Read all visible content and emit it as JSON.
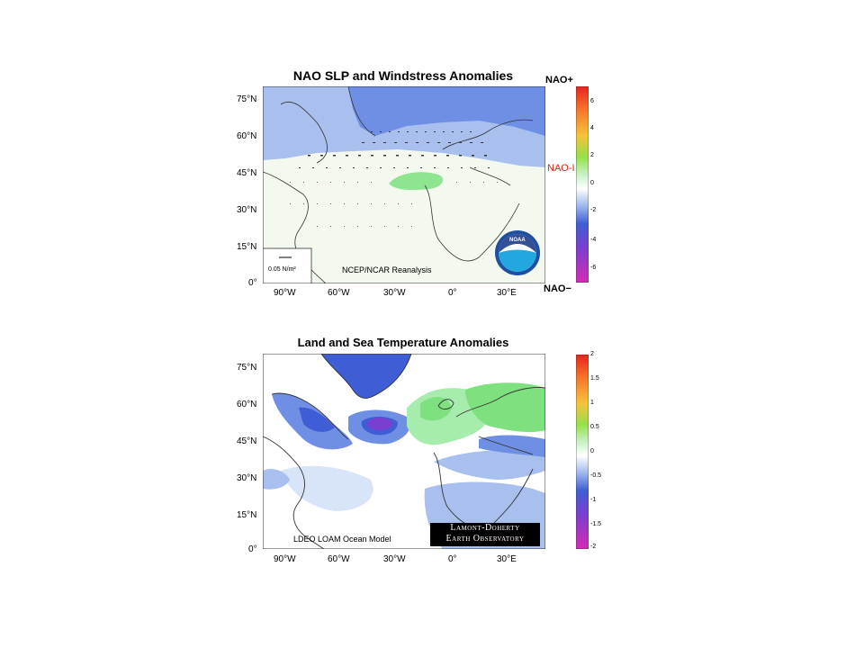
{
  "top_panel": {
    "title": "NAO SLP and Windstress Anomalies",
    "lat_labels": [
      "75°N",
      "60°N",
      "45°N",
      "30°N",
      "15°N",
      "0°"
    ],
    "lon_labels": [
      "90°W",
      "60°W",
      "30°W",
      "0°",
      "30°E"
    ],
    "nao_plus": "NAO+",
    "nao_index": "NAO-I",
    "nao_minus": "NAO−",
    "scale_ref": "0.05 N/m²",
    "credit": "NCEP/NCAR Reanalysis",
    "logo_text": "NOAA",
    "colorbar_ticks": [
      "6",
      "4",
      "2",
      "0",
      "-2",
      "-4",
      "-6"
    ]
  },
  "bottom_panel": {
    "title": "Land and Sea Temperature Anomalies",
    "lat_labels": [
      "75°N",
      "60°N",
      "45°N",
      "30°N",
      "15°N",
      "0°"
    ],
    "lon_labels": [
      "90°W",
      "60°W",
      "30°W",
      "0°",
      "30°E"
    ],
    "credit": "LDEO LOAM Ocean Model",
    "logo_line1": "Lamont-Doherty",
    "logo_line2": "Earth Observatory",
    "colorbar_ticks": [
      "2",
      "1.5",
      "1",
      "0.5",
      "0",
      "-0.5",
      "-1",
      "-1.5",
      "-2"
    ]
  },
  "colors": {
    "deep_blue": "#3f5ed6",
    "mid_blue": "#6f8fe4",
    "light_blue": "#a9c0ef",
    "pale_green": "#eef8e8",
    "green": "#7ee07e",
    "purple": "#7a3fd0",
    "red_label": "#e0201c"
  }
}
